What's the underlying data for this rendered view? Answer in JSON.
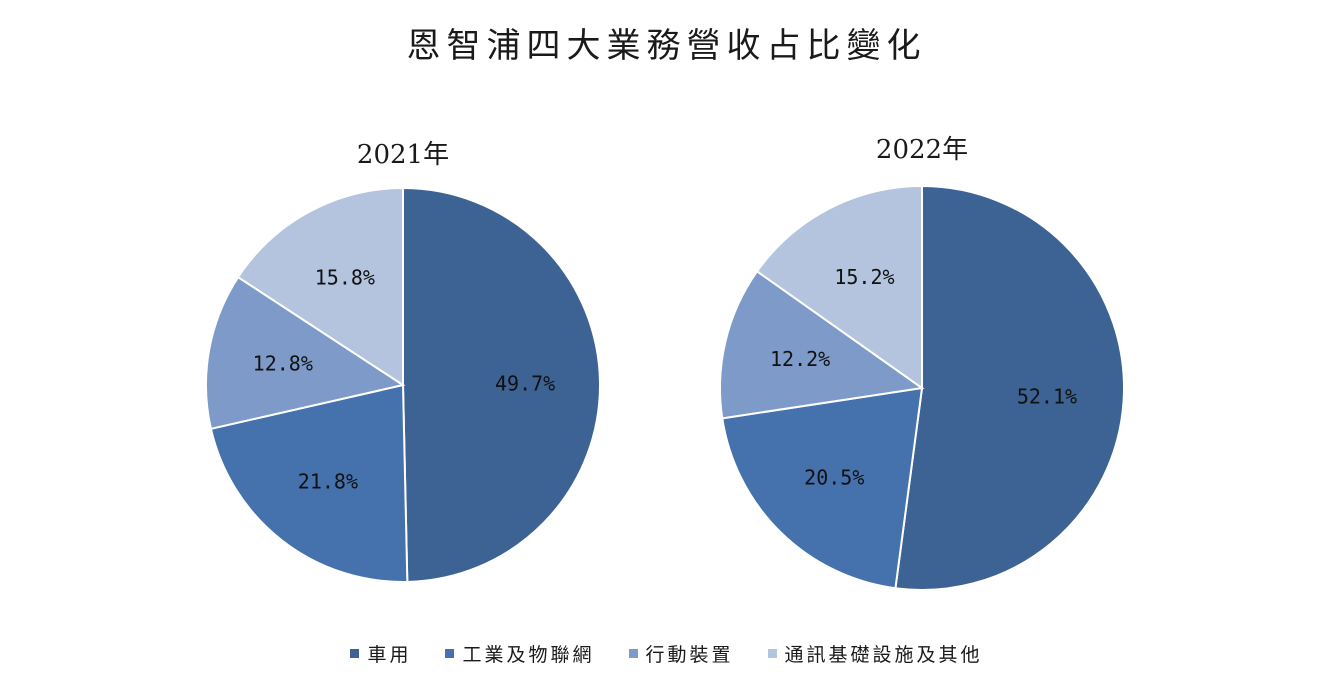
{
  "chart_data": {
    "type": "pie",
    "title": "恩智浦四大業務營收占比變化",
    "legend_position": "bottom",
    "categories": [
      "車用",
      "工業及物聯網",
      "行動裝置",
      "通訊基礎設施及其他"
    ],
    "colors": [
      "#3d6294",
      "#4572ad",
      "#7d9ac9",
      "#b4c3de"
    ],
    "charts": [
      {
        "title": "2021年",
        "values": [
          49.7,
          21.8,
          12.8,
          15.8
        ],
        "labels": [
          "49.7%",
          "21.8%",
          "12.8%",
          "15.8%"
        ]
      },
      {
        "title": "2022年",
        "values": [
          52.1,
          20.5,
          12.2,
          15.2
        ],
        "labels": [
          "52.1%",
          "20.5%",
          "12.2%",
          "15.2%"
        ]
      }
    ]
  }
}
